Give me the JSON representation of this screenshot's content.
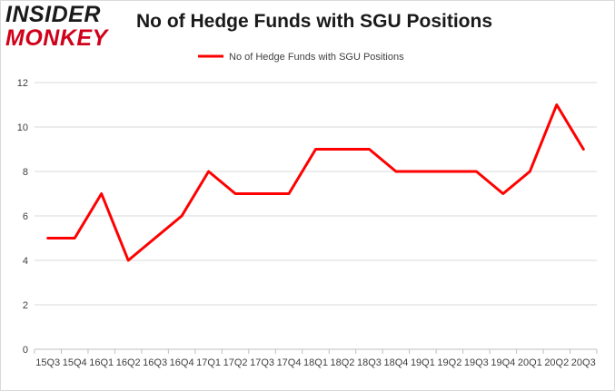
{
  "logo": {
    "line1": "INSIDER",
    "line2": "MONKEY"
  },
  "colors": {
    "series": "#ff0000",
    "grid": "#d9d9d9",
    "text": "#404040"
  },
  "chart_data": {
    "type": "line",
    "title": "No of Hedge Funds with SGU Positions",
    "xlabel": "",
    "ylabel": "",
    "categories": [
      "15Q3",
      "15Q4",
      "16Q1",
      "16Q2",
      "16Q3",
      "16Q4",
      "17Q1",
      "17Q2",
      "17Q3",
      "17Q4",
      "18Q1",
      "18Q2",
      "18Q3",
      "18Q4",
      "19Q1",
      "19Q2",
      "19Q3",
      "19Q4",
      "20Q1",
      "20Q2",
      "20Q3"
    ],
    "series": [
      {
        "name": "No of Hedge Funds with SGU Positions",
        "values": [
          5,
          5,
          7,
          4,
          5,
          6,
          8,
          7,
          7,
          7,
          9,
          9,
          9,
          8,
          8,
          8,
          8,
          7,
          8,
          11,
          9
        ]
      }
    ],
    "ylim": [
      0,
      12
    ],
    "yticks": [
      0,
      2,
      4,
      6,
      8,
      10,
      12
    ],
    "grid": true,
    "legend_position": "top-center"
  }
}
